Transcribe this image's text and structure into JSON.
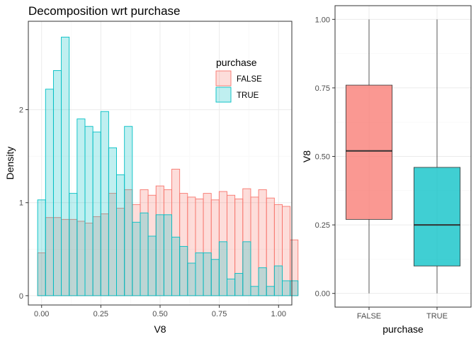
{
  "colors": {
    "false_fill": "#F8766D",
    "false_stroke": "#F8766D",
    "true_fill": "#00BFC4",
    "true_stroke": "#00BFC4",
    "grid_major": "#EBEBEB",
    "grid_minor": "#F5F5F5",
    "panel_border": "#333333",
    "median": "#333333"
  },
  "chart_data": [
    {
      "type": "histogram",
      "title": "Decomposition wrt purchase",
      "xlabel": "V8",
      "ylabel": "Density",
      "xlim": [
        -0.056,
        1.056
      ],
      "ylim": [
        -0.1,
        2.95
      ],
      "x_ticks": [
        0.0,
        0.25,
        0.5,
        0.75,
        1.0
      ],
      "x_tick_labels": [
        "0.00",
        "0.25",
        "0.50",
        "0.75",
        "1.00"
      ],
      "y_ticks": [
        0,
        1,
        2
      ],
      "y_tick_labels": [
        "0",
        "1",
        "2"
      ],
      "bin_edges_start": -0.0167,
      "bin_width": 0.0333,
      "legend": {
        "title": "purchase",
        "position": "top-right inside",
        "entries": [
          "FALSE",
          "TRUE"
        ]
      },
      "grid": true,
      "series": [
        {
          "name": "FALSE",
          "values": [
            0.46,
            0.84,
            0.84,
            0.82,
            0.82,
            0.8,
            0.78,
            0.85,
            0.88,
            1.1,
            0.94,
            1.14,
            0.98,
            1.14,
            1.08,
            1.18,
            1.14,
            1.36,
            1.1,
            1.06,
            1.04,
            1.1,
            1.03,
            1.12,
            1.08,
            1.04,
            1.15,
            1.06,
            1.14,
            1.05,
            0.98,
            0.96,
            0.6
          ]
        },
        {
          "name": "TRUE",
          "values": [
            1.03,
            2.22,
            2.42,
            2.78,
            1.1,
            1.9,
            1.82,
            1.76,
            1.98,
            1.59,
            1.3,
            1.82,
            0.79,
            0.89,
            0.64,
            0.87,
            0.87,
            0.63,
            0.53,
            0.35,
            0.46,
            0.46,
            0.39,
            0.58,
            0.18,
            0.24,
            0.58,
            0.1,
            0.3,
            0.1,
            0.32,
            0.16,
            0.16
          ]
        }
      ]
    },
    {
      "type": "boxplot",
      "xlabel": "purchase",
      "ylabel": "V8",
      "categories": [
        "FALSE",
        "TRUE"
      ],
      "ylim": [
        -0.05,
        1.05
      ],
      "y_ticks": [
        0.0,
        0.25,
        0.5,
        0.75,
        1.0
      ],
      "y_tick_labels": [
        "0.00",
        "0.25",
        "0.50",
        "0.75",
        "1.00"
      ],
      "grid": true,
      "boxes": [
        {
          "name": "FALSE",
          "min": 0.0,
          "q1": 0.27,
          "median": 0.52,
          "q3": 0.76,
          "max": 1.0
        },
        {
          "name": "TRUE",
          "min": 0.0,
          "q1": 0.1,
          "median": 0.25,
          "q3": 0.46,
          "max": 1.0
        }
      ]
    }
  ]
}
